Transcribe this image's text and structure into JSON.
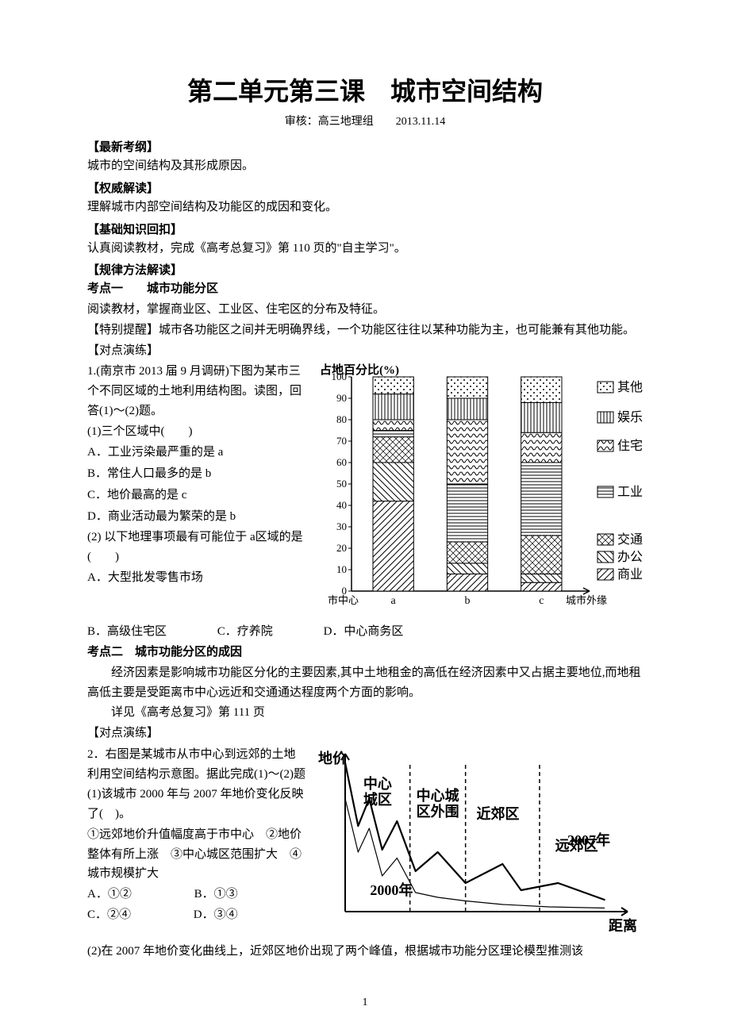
{
  "title": "第二单元第三课　城市空间结构",
  "subhead": "审核：高三地理组　　2013.11.14",
  "headings": {
    "h1": "【最新考纲】",
    "h2": "【权威解读】",
    "h3": "【基础知识回扣】",
    "h4": "【规律方法解读】",
    "kp1": "考点一　　城市功能分区",
    "practice": "【对点演练】",
    "kp2": "考点二　城市功能分区的成因"
  },
  "body": {
    "p1": "城市的空间结构及其形成原因。",
    "p2": "理解城市内部空间结构及功能区的成因和变化。",
    "p3": "认真阅读教材，完成《高考总复习》第 110 页的\"自主学习\"。",
    "p4": "阅读教材，掌握商业区、工业区、住宅区的分布及特征。",
    "p5": "【特别提醒】城市各功能区之间并无明确界线，一个功能区往往以某种功能为主，也可能兼有其他功能。",
    "q1a": "1.(南京市 2013 届 9 月调研)下图为某市三个不同区域的土地利用结构图。读图，回答(1)～(2)题。",
    "q1_1stem": "(1)三个区域中(　　)",
    "q1_1A": "A．工业污染最严重的是 a",
    "q1_1B": "B．常住人口最多的是 b",
    "q1_1C": "C．地价最高的是 c",
    "q1_1D": "D．商业活动最为繁荣的是 b",
    "q1_2stem": "(2) 以下地理事项最有可能位于 a区域的是(　　)",
    "q1_2A": "A．大型批发零售市场",
    "q1_2B": "B．高级住宅区",
    "q1_2C": "C．疗养院",
    "q1_2D": "D．中心商务区",
    "kp2p1": "经济因素是影响城市功能区分化的主要因素,其中土地租金的高低在经济因素中又占据主要地位,而地租高低主要是受距离市中心远近和交通通达程度两个方面的影响。",
    "kp2p2": "详见《高考总复习》第 111 页",
    "q2stem": "2．右图是某城市从市中心到远郊的土地利用空间结构示意图。据此完成(1)～(2)题",
    "q2_1stem": "(1)该城市 2000 年与 2007 年地价变化反映了(　)。",
    "q2_1opts": "①远郊地价升值幅度高于市中心　②地价整体有所上涨　③中心城区范围扩大　④城市规模扩大",
    "q2_1A": "A．①②",
    "q2_1B": "B．①③",
    "q2_1C": "C．②④",
    "q2_1D": "D．③④",
    "q2_2": "(2)在 2007 年地价变化曲线上，近郊区地价出现了两个峰值，根据城市功能分区理论模型推测该"
  },
  "chart1": {
    "type": "stacked-bar",
    "ylabel": "占地百分比(%)",
    "ylim": [
      0,
      100
    ],
    "ytick_step": 10,
    "label_fontsize": 13,
    "categories": [
      "a",
      "b",
      "c"
    ],
    "x_axis_left": "市中心",
    "x_axis_right": "城市外缘",
    "series": [
      "商业",
      "办公",
      "交通",
      "工业",
      "住宅",
      "娱乐",
      "其他"
    ],
    "colors": {
      "商业": {
        "fill": "#ffffff",
        "pattern": "diagonal"
      },
      "办公": {
        "fill": "#ffffff",
        "pattern": "diagonal-rev"
      },
      "交通": {
        "fill": "#ffffff",
        "pattern": "grid"
      },
      "工业": {
        "fill": "#ffffff",
        "pattern": "horiz"
      },
      "住宅": {
        "fill": "#ffffff",
        "pattern": "wave"
      },
      "娱乐": {
        "fill": "#ffffff",
        "pattern": "vert"
      },
      "其他": {
        "fill": "#ffffff",
        "pattern": "dots"
      }
    },
    "data": {
      "a": {
        "商业": 42,
        "办公": 18,
        "交通": 12,
        "工业": 3,
        "住宅": 5,
        "娱乐": 12,
        "其他": 8
      },
      "b": {
        "商业": 8,
        "办公": 5,
        "交通": 10,
        "工业": 27,
        "住宅": 30,
        "娱乐": 10,
        "其他": 10
      },
      "c": {
        "商业": 4,
        "办公": 4,
        "交通": 18,
        "工业": 34,
        "住宅": 14,
        "娱乐": 14,
        "其他": 12
      }
    },
    "bar_width": 0.55,
    "border_color": "#000000",
    "background_color": "#ffffff"
  },
  "chart2": {
    "type": "line",
    "xlabel": "距离",
    "ylabel": "地价",
    "regions": [
      "中心城区",
      "中心城区外围",
      "近郊区",
      "远郊区"
    ],
    "series_labels": [
      "2000年",
      "2007年"
    ],
    "label_fontsize": 16,
    "line_color": "#000000",
    "line_width_2000": 1.2,
    "line_width_2007": 2.2,
    "region_divider_style": "dashed",
    "background_color": "#ffffff",
    "curve_2000": [
      [
        0,
        95
      ],
      [
        14,
        50
      ],
      [
        26,
        70
      ],
      [
        40,
        30
      ],
      [
        56,
        45
      ],
      [
        76,
        16
      ],
      [
        100,
        12
      ],
      [
        130,
        9
      ],
      [
        170,
        6
      ],
      [
        220,
        4
      ],
      [
        280,
        3
      ]
    ],
    "curve_2007": [
      [
        0,
        125
      ],
      [
        14,
        72
      ],
      [
        26,
        95
      ],
      [
        40,
        52
      ],
      [
        56,
        76
      ],
      [
        76,
        34
      ],
      [
        100,
        50
      ],
      [
        130,
        24
      ],
      [
        170,
        40
      ],
      [
        190,
        18
      ],
      [
        230,
        24
      ],
      [
        280,
        10
      ]
    ],
    "region_bounds_x": [
      0,
      70,
      130,
      210,
      300
    ]
  },
  "page_number": "1"
}
